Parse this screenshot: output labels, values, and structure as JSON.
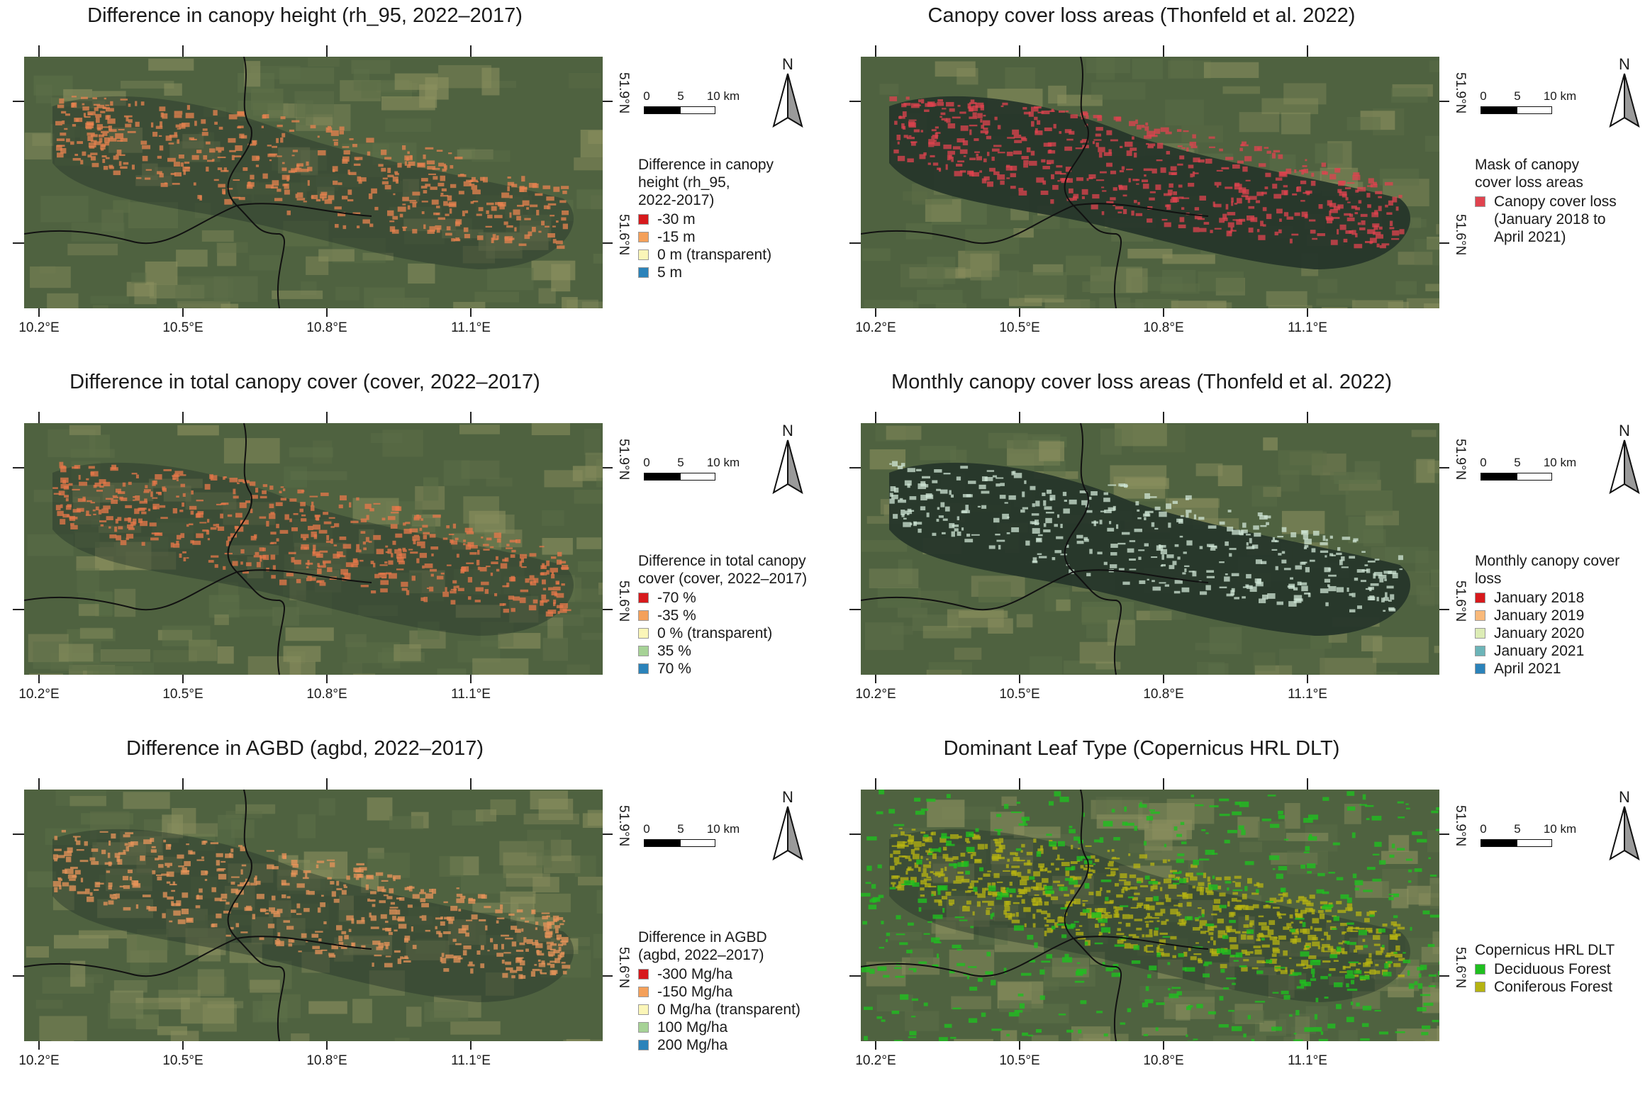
{
  "axes": {
    "lon_ticks": [
      "10.2°E",
      "10.5°E",
      "10.8°E",
      "11.1°E"
    ],
    "lat_ticks": [
      "51.9°N",
      "51.6°N"
    ]
  },
  "scalebar": {
    "zero": "0",
    "mid": "5",
    "end": "10 km"
  },
  "north_label": "N",
  "basemap_colors": {
    "land": "#4f6240",
    "forest_dark": "#26362a",
    "field": "#8a8f5e",
    "border": "#111111"
  },
  "panels": [
    {
      "id": "canopy-height",
      "title": "Difference in canopy height (rh_95, 2022–2017)",
      "legend_title": [
        "Difference in canopy",
        "height (rh_95,",
        "2022-2017)"
      ],
      "legend": [
        {
          "label": "-30 m",
          "color": "#d7191c"
        },
        {
          "label": "-15 m",
          "color": "#f4a05a"
        },
        {
          "label": "0 m (transparent)",
          "color": "#fbf6b8"
        },
        {
          "label": "5 m",
          "color": "#2b83ba"
        }
      ],
      "overlay": {
        "color": "#e8834f",
        "density": 0.55
      }
    },
    {
      "id": "loss-areas",
      "title": "Canopy cover loss areas (Thonfeld et al. 2022)",
      "legend_title": [
        "Mask of canopy",
        "cover loss areas"
      ],
      "legend": [
        {
          "label": "Canopy cover loss",
          "color": "#e0434f"
        },
        {
          "label": "(January 2018 to",
          "color": ""
        },
        {
          "label": "April 2021)",
          "color": ""
        }
      ],
      "overlay": {
        "color": "#e0434f",
        "density": 0.6
      }
    },
    {
      "id": "canopy-cover",
      "title": "Difference in total canopy cover (cover, 2022–2017)",
      "legend_title": [
        "Difference in total canopy",
        "cover (cover, 2022–2017)"
      ],
      "legend": [
        {
          "label": "-70 %",
          "color": "#d7191c"
        },
        {
          "label": "-35 %",
          "color": "#f4a05a"
        },
        {
          "label": "0 % (transparent)",
          "color": "#fbf6b8"
        },
        {
          "label": "35 %",
          "color": "#a6d296"
        },
        {
          "label": "70 %",
          "color": "#2b83ba"
        }
      ],
      "overlay": {
        "color": "#e8784a",
        "density": 0.6
      }
    },
    {
      "id": "monthly-loss",
      "title": "Monthly canopy cover loss areas (Thonfeld et al. 2022)",
      "legend_title": [
        "Monthly canopy cover",
        "loss"
      ],
      "legend": [
        {
          "label": "January 2018",
          "color": "#d7191c"
        },
        {
          "label": "January 2019",
          "color": "#f9b97a"
        },
        {
          "label": "January 2020",
          "color": "#dcecb5"
        },
        {
          "label": "January 2021",
          "color": "#6cb4b8"
        },
        {
          "label": "April 2021",
          "color": "#2b83ba"
        }
      ],
      "overlay": {
        "color": "#cfe6d6",
        "density": 0.45
      }
    },
    {
      "id": "agbd",
      "title": "Difference in AGBD (agbd, 2022–2017)",
      "legend_title": [
        "Difference in AGBD",
        "(agbd, 2022–2017)"
      ],
      "legend": [
        {
          "label": "-300 Mg/ha",
          "color": "#d7191c"
        },
        {
          "label": "-150 Mg/ha",
          "color": "#f4a05a"
        },
        {
          "label": "0 Mg/ha (transparent)",
          "color": "#fbf6b8"
        },
        {
          "label": "100 Mg/ha",
          "color": "#a6d296"
        },
        {
          "label": "200 Mg/ha",
          "color": "#2b83ba"
        }
      ],
      "overlay": {
        "color": "#e8945a",
        "density": 0.55
      }
    },
    {
      "id": "leaf-type",
      "title": "Dominant Leaf Type (Copernicus HRL DLT)",
      "legend_title": [
        "Copernicus HRL DLT"
      ],
      "legend": [
        {
          "label": "Deciduous Forest",
          "color": "#1fbf1f"
        },
        {
          "label": "Coniferous Forest",
          "color": "#b5b312"
        }
      ],
      "overlay": {
        "color": "#b5b312",
        "density": 0.8
      }
    }
  ]
}
